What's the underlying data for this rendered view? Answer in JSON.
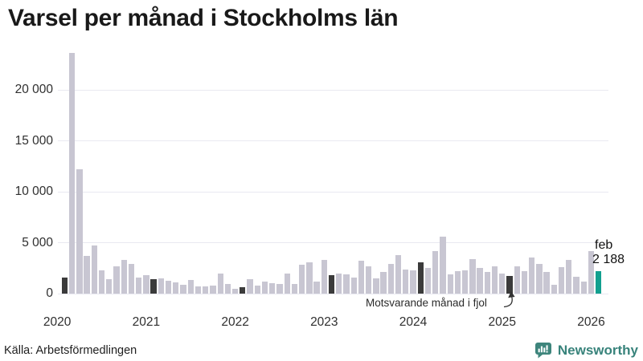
{
  "title": "Varsel per månad i Stockholms län",
  "source": "Källa: Arbetsförmedlingen",
  "branding": {
    "name": "Newsworthy",
    "color": "#3e857c"
  },
  "annotation": {
    "text": "Motsvarande månad i fjol"
  },
  "highlight": {
    "month_label": "feb",
    "value_label": "2 188"
  },
  "colors": {
    "bar_default": "#c8c6d2",
    "bar_last_year": "#3b3b3b",
    "bar_current": "#12a08f",
    "gridline": "#e9e9f1",
    "axis_text": "#2f2f2f"
  },
  "chart_data": {
    "type": "bar",
    "title": "Varsel per månad i Stockholms län",
    "xlabel": "",
    "ylabel": "",
    "ylim": [
      0,
      24000
    ],
    "grid": "horizontal",
    "legend": null,
    "yticks": [
      {
        "value": 0,
        "label": "0"
      },
      {
        "value": 5000,
        "label": "5 000"
      },
      {
        "value": 10000,
        "label": "10 000"
      },
      {
        "value": 15000,
        "label": "15 000"
      },
      {
        "value": 20000,
        "label": "20 000"
      }
    ],
    "year_ticks": [
      "2020",
      "2021",
      "2022",
      "2023",
      "2024",
      "2025",
      "2026"
    ],
    "months": [
      "2020-02",
      "2020-03",
      "2020-04",
      "2020-05",
      "2020-06",
      "2020-07",
      "2020-08",
      "2020-09",
      "2020-10",
      "2020-11",
      "2020-12",
      "2021-01",
      "2021-02",
      "2021-03",
      "2021-04",
      "2021-05",
      "2021-06",
      "2021-07",
      "2021-08",
      "2021-09",
      "2021-10",
      "2021-11",
      "2021-12",
      "2022-01",
      "2022-02",
      "2022-03",
      "2022-04",
      "2022-05",
      "2022-06",
      "2022-07",
      "2022-08",
      "2022-09",
      "2022-10",
      "2022-11",
      "2022-12",
      "2023-01",
      "2023-02",
      "2023-03",
      "2023-04",
      "2023-05",
      "2023-06",
      "2023-07",
      "2023-08",
      "2023-09",
      "2023-10",
      "2023-11",
      "2023-12",
      "2024-01",
      "2024-02",
      "2024-03",
      "2024-04",
      "2024-05",
      "2024-06",
      "2024-07",
      "2024-08",
      "2024-09",
      "2024-10",
      "2024-11",
      "2024-12",
      "2025-01",
      "2025-02",
      "2025-03",
      "2025-04",
      "2025-05",
      "2025-06",
      "2025-07",
      "2025-08",
      "2025-09",
      "2025-10",
      "2025-11",
      "2025-12",
      "2026-01",
      "2026-02"
    ],
    "values": [
      1550,
      23600,
      12200,
      3700,
      4750,
      2250,
      1450,
      2650,
      3300,
      2900,
      1600,
      1850,
      1450,
      1500,
      1280,
      1100,
      900,
      1350,
      700,
      750,
      760,
      1950,
      950,
      450,
      650,
      1400,
      760,
      1220,
      1000,
      950,
      2000,
      960,
      2800,
      3100,
      1220,
      3300,
      1800,
      2000,
      1930,
      1550,
      3200,
      2700,
      1480,
      2150,
      2900,
      3800,
      2400,
      2260,
      3100,
      2500,
      4150,
      5600,
      1920,
      2200,
      2260,
      3400,
      2530,
      2150,
      2670,
      2000,
      1760,
      2670,
      2230,
      3580,
      2930,
      2150,
      900,
      2600,
      3320,
      1620,
      1180,
      4140,
      2188
    ],
    "compare_months": [
      "2020-02",
      "2021-02",
      "2022-02",
      "2023-02",
      "2024-02",
      "2025-02"
    ],
    "highlight_month": "2026-02",
    "highlight_value": 2188
  }
}
